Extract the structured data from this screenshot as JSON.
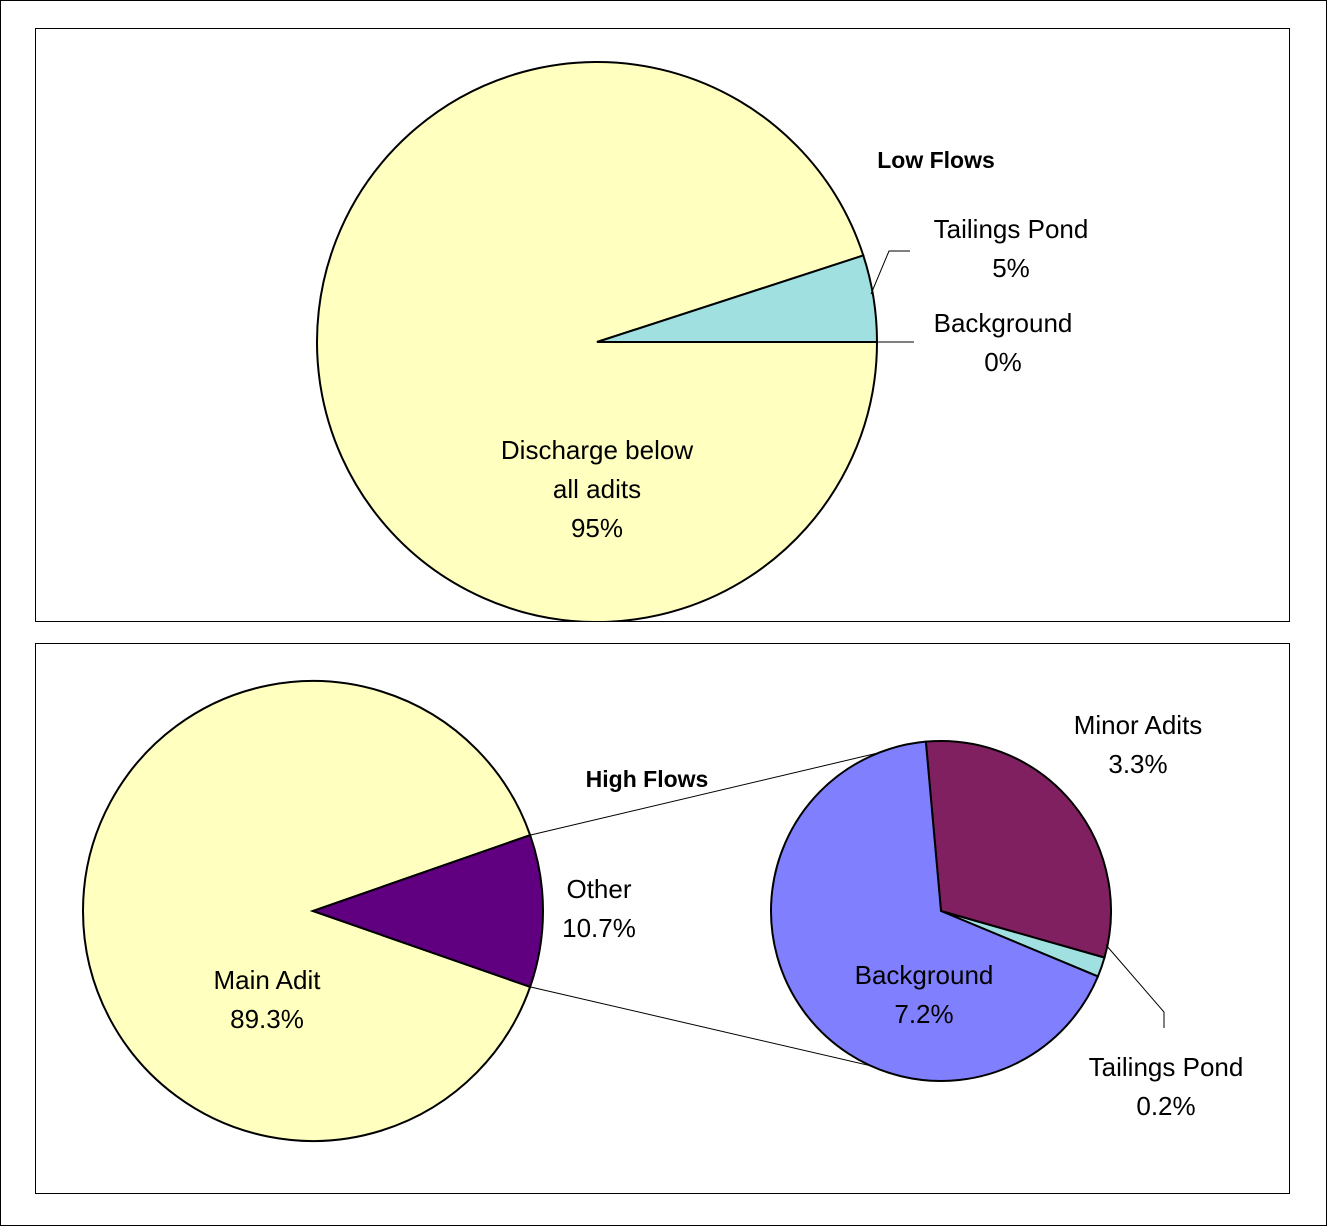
{
  "chart_data": [
    {
      "type": "pie",
      "title": "Low Flows",
      "slices": [
        {
          "label": "Discharge below all adits",
          "label_lines": [
            "Discharge below",
            "all adits"
          ],
          "value": 95,
          "display": "95%",
          "color": "#FFFFC0"
        },
        {
          "label": "Tailings Pond",
          "label_lines": [
            "Tailings Pond"
          ],
          "value": 5,
          "display": "5%",
          "color": "#A0E0E0"
        },
        {
          "label": "Background",
          "label_lines": [
            "Background"
          ],
          "value": 0,
          "display": "0%",
          "color": "#8080FF"
        }
      ]
    },
    {
      "type": "pie",
      "subtype": "pie-of-pie",
      "title": "High Flows",
      "slices": [
        {
          "label": "Main Adit",
          "label_lines": [
            "Main Adit"
          ],
          "value": 89.3,
          "display": "89.3%",
          "color": "#FFFFC0"
        },
        {
          "label": "Other",
          "label_lines": [
            "Other"
          ],
          "value": 10.7,
          "display": "10.7%",
          "color": "#600080"
        }
      ],
      "breakout": [
        {
          "label": "Minor Adits",
          "label_lines": [
            "Minor Adits"
          ],
          "value": 3.3,
          "display": "3.3%",
          "color": "#802060"
        },
        {
          "label": "Tailings Pond",
          "label_lines": [
            "Tailings Pond"
          ],
          "value": 0.2,
          "display": "0.2%",
          "color": "#A0E0E0"
        },
        {
          "label": "Background",
          "label_lines": [
            "Background"
          ],
          "value": 7.2,
          "display": "7.2%",
          "color": "#8080FF"
        }
      ]
    }
  ]
}
